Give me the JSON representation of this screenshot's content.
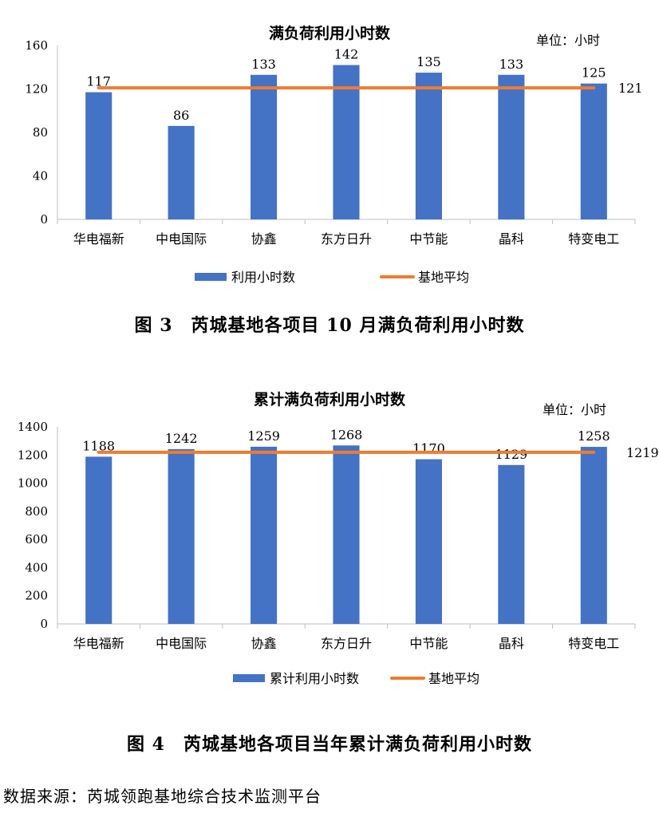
{
  "chart_data": [
    {
      "type": "bar",
      "title": "满负荷利用小时数",
      "unit_note": "单位：小时",
      "categories": [
        "华电福新",
        "中电国际",
        "协鑫",
        "东方日升",
        "中节能",
        "晶科",
        "特变电工"
      ],
      "series": [
        {
          "name": "利用小时数",
          "type": "bar",
          "color": "#4472C4",
          "values": [
            117,
            86,
            133,
            142,
            135,
            133,
            125
          ]
        },
        {
          "name": "基地平均",
          "type": "line",
          "color": "#ED7D31",
          "values": [
            121,
            121,
            121,
            121,
            121,
            121,
            121
          ]
        }
      ],
      "data_labels": [
        "117",
        "86",
        "133",
        "142",
        "135",
        "133",
        "125"
      ],
      "average_label": "121",
      "ylim": [
        0,
        160
      ],
      "yticks": [
        "0",
        "40",
        "80",
        "120",
        "160"
      ],
      "legend": "bottom",
      "grid": false
    },
    {
      "type": "bar",
      "title": "累计满负荷利用小时数",
      "unit_note": "单位：小时",
      "categories": [
        "华电福新",
        "中电国际",
        "协鑫",
        "东方日升",
        "中节能",
        "晶科",
        "特变电工"
      ],
      "series": [
        {
          "name": "累计利用小时数",
          "type": "bar",
          "color": "#4472C4",
          "values": [
            1188,
            1242,
            1259,
            1268,
            1170,
            1129,
            1258
          ]
        },
        {
          "name": "基地平均",
          "type": "line",
          "color": "#ED7D31",
          "values": [
            1219,
            1219,
            1219,
            1219,
            1219,
            1219,
            1219
          ]
        }
      ],
      "data_labels": [
        "1188",
        "1242",
        "1259",
        "1268",
        "1170",
        "1129",
        "1258"
      ],
      "average_label": "1219",
      "ylim": [
        0,
        1400
      ],
      "yticks": [
        "0",
        "200",
        "400",
        "600",
        "800",
        "1000",
        "1200",
        "1400"
      ],
      "legend": "bottom",
      "grid": false
    }
  ],
  "captions": {
    "fig3": "图 3　芮城基地各项目 10 月满负荷利用小时数",
    "fig4": "图 4　芮城基地各项目当年累计满负荷利用小时数"
  },
  "source": "数据来源：芮城领跑基地综合技术监测平台"
}
